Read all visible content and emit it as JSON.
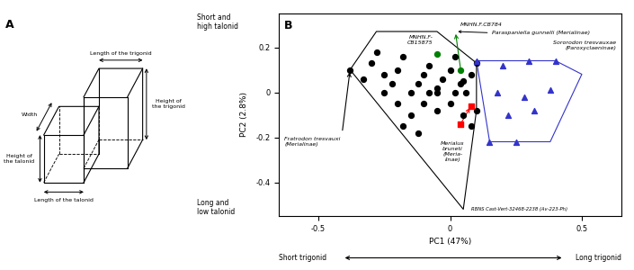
{
  "chart_data": {
    "type": "scatter",
    "x_label": "PC1 (47%)",
    "y_label": "PC2 (2.8%)",
    "xlim": [
      -0.65,
      0.65
    ],
    "ylim": [
      -0.55,
      0.35
    ],
    "xticks": [
      -0.5,
      0,
      0.5
    ],
    "yticks": [
      -0.4,
      -0.2,
      0,
      0.2
    ],
    "series": [
      {
        "type": "line",
        "color": "black",
        "line_style": "solid",
        "x": [
          -0.38,
          -0.28,
          -0.05,
          0.1,
          0.1,
          0.05,
          -0.38
        ],
        "values": [
          0.1,
          0.27,
          0.27,
          0.13,
          -0.08,
          -0.52,
          0.1
        ]
      },
      {
        "type": "line",
        "color": "#3333cc",
        "line_style": "solid",
        "x": [
          0.1,
          0.4,
          0.5,
          0.38,
          0.15,
          0.1
        ],
        "values": [
          0.14,
          0.14,
          0.08,
          -0.22,
          -0.22,
          0.14
        ]
      },
      {
        "type": "scatter",
        "color": "black",
        "marker": "circle",
        "x": [
          -0.38,
          -0.33,
          -0.3,
          -0.28,
          -0.25,
          -0.22,
          -0.2,
          -0.18,
          -0.15,
          -0.12,
          -0.1,
          -0.08,
          -0.05,
          -0.03,
          0.0,
          0.02,
          0.04,
          0.06,
          0.08,
          0.1,
          -0.2,
          -0.15,
          -0.1,
          -0.05,
          0.0,
          0.05,
          0.08,
          -0.25,
          -0.18,
          -0.12,
          0.1,
          -0.05,
          0.02,
          -0.08,
          0.05
        ],
        "values": [
          0.1,
          0.06,
          0.13,
          0.18,
          0.08,
          0.04,
          0.1,
          0.16,
          0.0,
          0.04,
          0.08,
          0.12,
          0.0,
          0.06,
          0.1,
          0.16,
          0.04,
          0.0,
          0.08,
          0.13,
          -0.05,
          -0.1,
          -0.05,
          -0.08,
          -0.05,
          -0.1,
          -0.15,
          0.0,
          -0.15,
          -0.18,
          -0.08,
          0.02,
          0.0,
          0.0,
          0.05
        ]
      },
      {
        "type": "scatter",
        "color": "#3333cc",
        "marker": "triangle",
        "x": [
          0.1,
          0.2,
          0.3,
          0.4,
          0.18,
          0.28,
          0.38,
          0.22,
          0.32,
          0.15,
          0.25
        ],
        "values": [
          0.14,
          0.12,
          0.14,
          0.14,
          0.0,
          -0.02,
          0.01,
          -0.1,
          -0.08,
          -0.22,
          -0.22
        ]
      },
      {
        "type": "scatter",
        "color": "red",
        "marker": "square",
        "x": [
          0.08,
          0.04
        ],
        "values": [
          -0.06,
          -0.14
        ]
      },
      {
        "type": "scatter",
        "color": "green",
        "marker": "circle",
        "x": [
          0.04,
          -0.05
        ],
        "values": [
          0.1,
          0.17
        ]
      }
    ],
    "arrows": [
      {
        "from": [
          0.04,
          0.1
        ],
        "to": [
          0.02,
          0.27
        ],
        "color": "green"
      },
      {
        "from": [
          0.04,
          -0.14
        ],
        "to": [
          0.08,
          -0.06
        ],
        "color": "red"
      },
      {
        "from": [
          -0.41,
          -0.18
        ],
        "to": [
          -0.38,
          0.1
        ],
        "color": "black"
      }
    ],
    "annotations": [
      {
        "text": "MNHN.F.CB784"
      },
      {
        "text": "MNHN.F-\nCB15875"
      },
      {
        "text": "Paraspaniella gunnelli (Merialinae)",
        "arrow_to": [
          0.02,
          0.27
        ]
      },
      {
        "text": "Sororodon tresvauxae\n(Paroxyclaeninae)"
      },
      {
        "text": "Fratrodon tresvauxi\n(Merialinae)"
      },
      {
        "text": "Merialus\nbruneti\n(Meria-\nlinae)"
      },
      {
        "text": "RBNS Cast-Vert-32468-2238 (Av-223-Ph)"
      }
    ],
    "axis_notes": [
      "Short and\nhigh talonid",
      "Long and\nlow talonid",
      "Short trigonid",
      "Long trigonid"
    ],
    "panel_labels": [
      "A",
      "B"
    ],
    "diagram_labels": [
      "Height of\nthe talonid",
      "Height of\nthe trigonid",
      "Width",
      "Length of the talonid",
      "Length of the trigonid"
    ]
  }
}
